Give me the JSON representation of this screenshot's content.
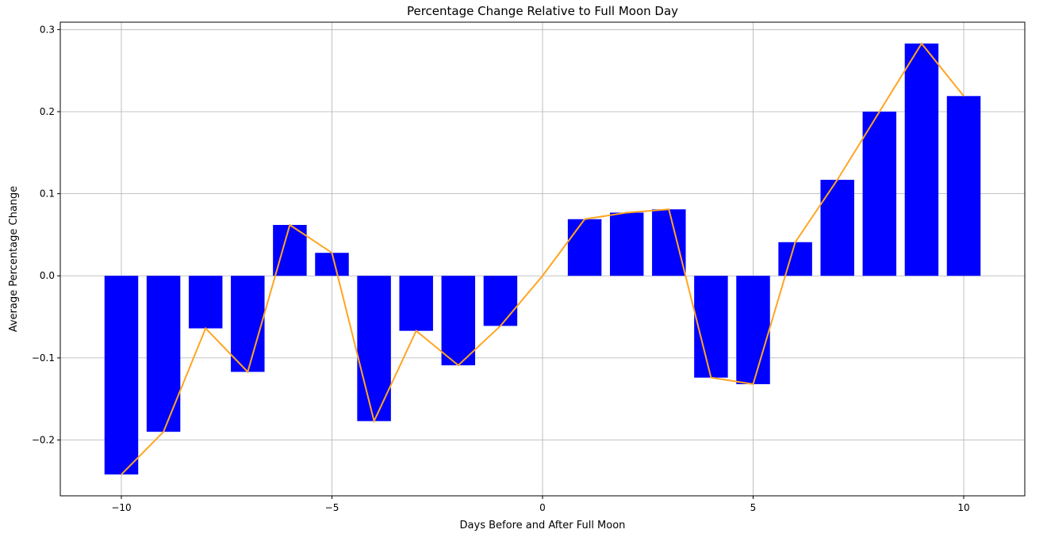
{
  "chart_data": {
    "type": "bar",
    "title": "Percentage Change Relative to Full Moon Day",
    "xlabel": "Days Before and After Full Moon",
    "ylabel": "Average Percentage Change",
    "x": [
      -10,
      -9,
      -8,
      -7,
      -6,
      -5,
      -4,
      -3,
      -2,
      -1,
      0,
      1,
      2,
      3,
      4,
      5,
      6,
      7,
      8,
      9,
      10
    ],
    "values": [
      -0.242,
      -0.19,
      -0.064,
      -0.117,
      0.062,
      0.028,
      -0.177,
      -0.067,
      -0.109,
      -0.061,
      0.0,
      0.069,
      0.077,
      0.081,
      -0.124,
      -0.132,
      0.041,
      0.117,
      0.2,
      0.283,
      0.219
    ],
    "series": [
      {
        "name": "bars",
        "type": "bar",
        "color": "#0000ff"
      },
      {
        "name": "line",
        "type": "line",
        "color": "#ffa520"
      }
    ],
    "xlim": [
      -11.45,
      11.45
    ],
    "ylim": [
      -0.268,
      0.309
    ],
    "xticks": [
      -10,
      -5,
      0,
      5,
      10
    ],
    "xtick_labels": [
      "−10",
      "−5",
      "0",
      "5",
      "10"
    ],
    "yticks": [
      -0.2,
      -0.1,
      0.0,
      0.1,
      0.2,
      0.3
    ],
    "ytick_labels": [
      "−0.2",
      "−0.1",
      "0.0",
      "0.1",
      "0.2",
      "0.3"
    ],
    "grid": true,
    "bar_width": 0.8
  }
}
